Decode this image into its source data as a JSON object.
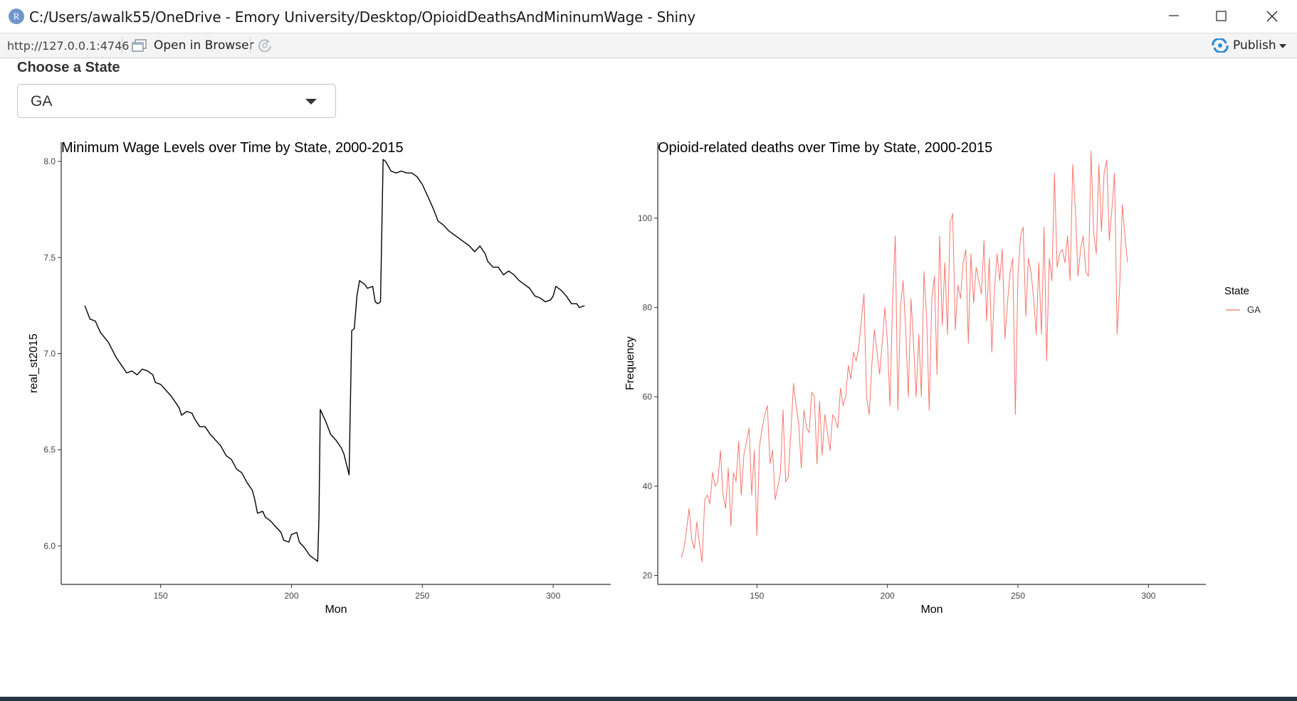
{
  "window": {
    "title": "C:/Users/awalk55/OneDrive - Emory University/Desktop/OpioidDeathsAndMininumWage - Shiny",
    "app_icon_letter": "R"
  },
  "toolbar": {
    "url": "http://127.0.0.1:4746",
    "open_in_browser": "Open in Browser",
    "publish": "Publish"
  },
  "sidebar": {
    "state_label": "Choose a State",
    "selected_state": "GA"
  },
  "colors": {
    "wage_line": "#000000",
    "deaths_line": "#f8766d",
    "publish_icon": "#2a8ad6"
  },
  "icons": {
    "app": "r-logo-icon",
    "open_browser": "browser-window-icon",
    "refresh": "refresh-icon",
    "publish": "publish-icon",
    "dropdown": "caret-down-icon"
  },
  "chart_data": [
    {
      "type": "line",
      "title": "Minimum Wage Levels over Time by State, 2000-2015",
      "xlabel": "Mon",
      "ylabel": "real_st2015",
      "xlim": [
        112,
        322
      ],
      "ylim": [
        5.8,
        8.1
      ],
      "x_ticks": [
        150,
        200,
        250,
        300
      ],
      "y_ticks": [
        6.0,
        6.5,
        7.0,
        7.5,
        8.0
      ],
      "x_tick_labels": [
        "150",
        "200",
        "250",
        "300"
      ],
      "y_tick_labels": [
        "6.0",
        "6.5",
        "7.0",
        "7.5",
        "8.0"
      ],
      "grid": false,
      "points": [
        [
          121,
          7.25
        ],
        [
          123,
          7.18
        ],
        [
          125,
          7.17
        ],
        [
          127,
          7.11
        ],
        [
          130,
          7.06
        ],
        [
          133,
          6.98
        ],
        [
          135,
          6.94
        ],
        [
          137,
          6.9
        ],
        [
          139,
          6.91
        ],
        [
          141,
          6.89
        ],
        [
          143,
          6.92
        ],
        [
          145,
          6.91
        ],
        [
          147,
          6.89
        ],
        [
          148,
          6.85
        ],
        [
          150,
          6.84
        ],
        [
          152,
          6.81
        ],
        [
          154,
          6.78
        ],
        [
          156,
          6.74
        ],
        [
          157,
          6.72
        ],
        [
          158,
          6.68
        ],
        [
          160,
          6.7
        ],
        [
          162,
          6.69
        ],
        [
          163,
          6.66
        ],
        [
          165,
          6.62
        ],
        [
          167,
          6.62
        ],
        [
          169,
          6.58
        ],
        [
          171,
          6.55
        ],
        [
          173,
          6.52
        ],
        [
          175,
          6.47
        ],
        [
          177,
          6.45
        ],
        [
          179,
          6.4
        ],
        [
          181,
          6.38
        ],
        [
          183,
          6.33
        ],
        [
          185,
          6.29
        ],
        [
          186,
          6.24
        ],
        [
          187,
          6.17
        ],
        [
          189,
          6.18
        ],
        [
          190,
          6.15
        ],
        [
          192,
          6.13
        ],
        [
          194,
          6.1
        ],
        [
          196,
          6.07
        ],
        [
          197,
          6.03
        ],
        [
          199,
          6.02
        ],
        [
          200,
          6.06
        ],
        [
          202,
          6.07
        ],
        [
          203,
          6.02
        ],
        [
          205,
          5.99
        ],
        [
          207,
          5.95
        ],
        [
          209,
          5.93
        ],
        [
          210,
          5.92
        ],
        [
          210.5,
          6.15
        ],
        [
          211,
          6.71
        ],
        [
          213,
          6.65
        ],
        [
          215,
          6.58
        ],
        [
          217,
          6.55
        ],
        [
          219,
          6.51
        ],
        [
          220,
          6.48
        ],
        [
          222,
          6.37
        ],
        [
          223,
          7.12
        ],
        [
          224,
          7.13
        ],
        [
          225,
          7.3
        ],
        [
          226,
          7.38
        ],
        [
          228,
          7.36
        ],
        [
          229,
          7.34
        ],
        [
          231,
          7.35
        ],
        [
          232,
          7.27
        ],
        [
          233,
          7.26
        ],
        [
          234,
          7.27
        ],
        [
          235,
          8.01
        ],
        [
          236,
          8.0
        ],
        [
          238,
          7.95
        ],
        [
          240,
          7.94
        ],
        [
          242,
          7.95
        ],
        [
          244,
          7.94
        ],
        [
          246,
          7.94
        ],
        [
          248,
          7.92
        ],
        [
          250,
          7.88
        ],
        [
          252,
          7.82
        ],
        [
          254,
          7.76
        ],
        [
          256,
          7.69
        ],
        [
          258,
          7.67
        ],
        [
          260,
          7.64
        ],
        [
          262,
          7.62
        ],
        [
          264,
          7.6
        ],
        [
          266,
          7.58
        ],
        [
          268,
          7.56
        ],
        [
          270,
          7.53
        ],
        [
          272,
          7.56
        ],
        [
          274,
          7.52
        ],
        [
          275,
          7.48
        ],
        [
          277,
          7.45
        ],
        [
          279,
          7.45
        ],
        [
          281,
          7.41
        ],
        [
          283,
          7.43
        ],
        [
          285,
          7.41
        ],
        [
          287,
          7.38
        ],
        [
          289,
          7.36
        ],
        [
          291,
          7.34
        ],
        [
          293,
          7.3
        ],
        [
          295,
          7.29
        ],
        [
          297,
          7.27
        ],
        [
          299,
          7.28
        ],
        [
          300,
          7.3
        ],
        [
          301,
          7.35
        ],
        [
          303,
          7.33
        ],
        [
          305,
          7.3
        ],
        [
          307,
          7.26
        ],
        [
          309,
          7.26
        ],
        [
          310,
          7.24
        ],
        [
          312,
          7.25
        ]
      ]
    },
    {
      "type": "line",
      "title": "Opioid-related deaths over Time by State, 2000-2015",
      "xlabel": "Mon",
      "ylabel": "Frequency",
      "xlim": [
        112,
        322
      ],
      "ylim": [
        18,
        117
      ],
      "x_ticks": [
        150,
        200,
        250,
        300
      ],
      "y_ticks": [
        20,
        40,
        60,
        80,
        100
      ],
      "x_tick_labels": [
        "150",
        "200",
        "250",
        "300"
      ],
      "y_tick_labels": [
        "20",
        "40",
        "60",
        "80",
        "100"
      ],
      "grid": false,
      "legend": {
        "title": "State",
        "entries": [
          "GA"
        ],
        "placement": "right"
      },
      "series": [
        {
          "name": "GA",
          "x_start": 121,
          "values": [
            24,
            26,
            30,
            35,
            28,
            26,
            32,
            27,
            23,
            37,
            38,
            36,
            43,
            40,
            41,
            48,
            38,
            35,
            44,
            31,
            43,
            41,
            50,
            38,
            47,
            50,
            53,
            38,
            48,
            29,
            49,
            53,
            56,
            58,
            45,
            48,
            37,
            40,
            43,
            57,
            41,
            42,
            52,
            63,
            58,
            54,
            44,
            57,
            53,
            52,
            61,
            60,
            45,
            59,
            47,
            56,
            52,
            48,
            56,
            55,
            53,
            62,
            58,
            60,
            67,
            64,
            70,
            68,
            71,
            77,
            83,
            60,
            56,
            67,
            75,
            70,
            65,
            72,
            80,
            72,
            58,
            82,
            96,
            57,
            80,
            86,
            75,
            60,
            82,
            72,
            60,
            74,
            60,
            88,
            78,
            57,
            82,
            87,
            65,
            96,
            76,
            90,
            74,
            99,
            101,
            75,
            85,
            82,
            90,
            93,
            72,
            92,
            81,
            89,
            86,
            83,
            95,
            77,
            91,
            70,
            84,
            92,
            86,
            93,
            73,
            81,
            88,
            91,
            56,
            87,
            96,
            98,
            78,
            91,
            88,
            82,
            74,
            90,
            74,
            98,
            68,
            91,
            86,
            110,
            89,
            92,
            93,
            90,
            96,
            86,
            112,
            102,
            87,
            93,
            96,
            88,
            87,
            115,
            97,
            92,
            112,
            97,
            110,
            113,
            95,
            102,
            110,
            74,
            85,
            103,
            96,
            90
          ]
        }
      ]
    }
  ]
}
